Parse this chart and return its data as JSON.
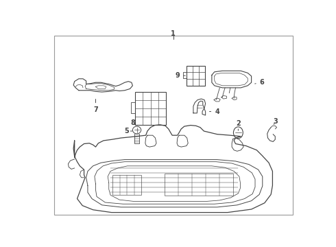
{
  "bg_color": "#ffffff",
  "line_color": "#444444",
  "border_color": "#888888",
  "fig_width": 4.9,
  "fig_height": 3.6,
  "dpi": 100
}
